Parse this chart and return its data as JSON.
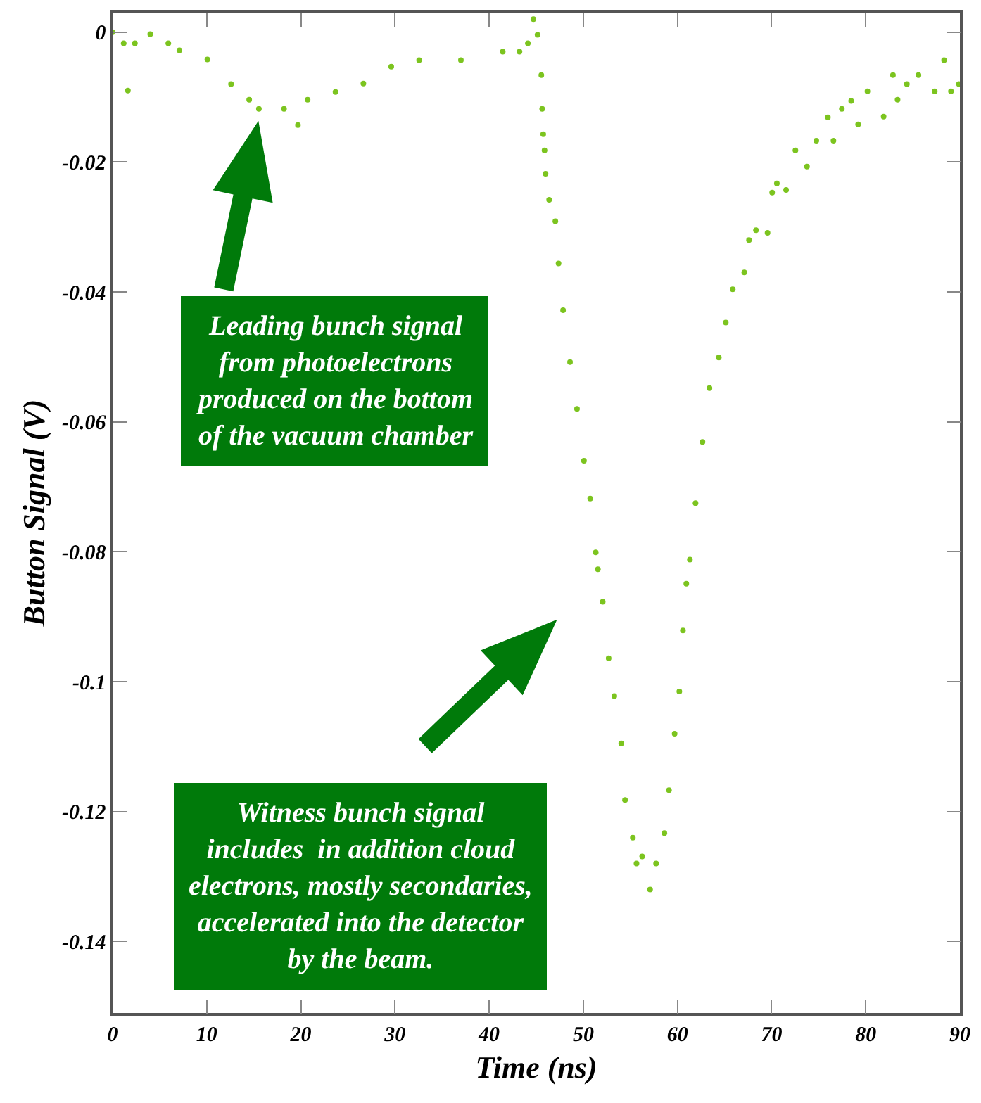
{
  "chart_data": {
    "type": "scatter",
    "xlabel": "Time (ns)",
    "ylabel": "Button Signal (V)",
    "xlim": [
      0,
      90
    ],
    "ylim": [
      -0.151,
      0.003
    ],
    "xticks": [
      0,
      10,
      20,
      30,
      40,
      50,
      60,
      70,
      80,
      90
    ],
    "yticks": [
      0,
      -0.02,
      -0.04,
      -0.06,
      -0.08,
      -0.1,
      -0.12,
      -0.14
    ],
    "legend": false,
    "marker": "circle",
    "x": [
      0.0,
      1.18,
      1.63,
      2.37,
      4.0,
      5.92,
      7.1,
      10.07,
      12.58,
      14.51,
      15.54,
      18.21,
      19.69,
      20.72,
      23.68,
      26.64,
      29.6,
      32.56,
      37.0,
      41.44,
      43.22,
      44.11,
      44.7,
      45.14,
      45.54,
      45.63,
      45.74,
      45.88,
      45.99,
      46.37,
      47.03,
      47.37,
      47.85,
      48.59,
      49.33,
      50.07,
      50.73,
      51.32,
      51.55,
      52.06,
      52.69,
      53.29,
      54.03,
      54.43,
      55.26,
      55.65,
      56.25,
      57.09,
      57.73,
      58.61,
      59.1,
      59.7,
      60.2,
      60.58,
      60.94,
      61.32,
      61.92,
      62.66,
      63.4,
      64.39,
      65.13,
      65.87,
      67.1,
      67.6,
      68.34,
      69.57,
      70.06,
      70.56,
      71.54,
      72.53,
      73.76,
      74.75,
      75.98,
      76.57,
      77.46,
      78.45,
      79.19,
      80.18,
      81.9,
      82.89,
      83.38,
      84.37,
      85.6,
      87.33,
      88.32,
      89.05,
      89.9
    ],
    "series": [
      {
        "color": "#7cc41f",
        "values": [
          0,
          -0.0017,
          -0.009,
          -0.0017,
          -0.0003,
          -0.0017,
          -0.0028,
          -0.0042,
          -0.008,
          -0.0104,
          -0.0118,
          -0.0118,
          -0.0143,
          -0.0104,
          -0.0092,
          -0.0079,
          -0.0053,
          -0.0043,
          -0.0043,
          -0.003,
          -0.003,
          -0.0017,
          0.002,
          -0.0004,
          -0.0066,
          -0.0118,
          -0.0157,
          -0.0182,
          -0.0218,
          -0.0258,
          -0.0291,
          -0.0356,
          -0.0428,
          -0.0508,
          -0.058,
          -0.066,
          -0.0718,
          -0.0801,
          -0.0827,
          -0.0877,
          -0.0964,
          -0.1022,
          -0.1095,
          -0.1182,
          -0.124,
          -0.128,
          -0.1269,
          -0.132,
          -0.128,
          -0.1233,
          -0.1167,
          -0.108,
          -0.1015,
          -0.0921,
          -0.0849,
          -0.0812,
          -0.0725,
          -0.0631,
          -0.0548,
          -0.0501,
          -0.0447,
          -0.0396,
          -0.037,
          -0.032,
          -0.0305,
          -0.0309,
          -0.0247,
          -0.0233,
          -0.0243,
          -0.0182,
          -0.0207,
          -0.0167,
          -0.0131,
          -0.0167,
          -0.0118,
          -0.0106,
          -0.0142,
          -0.0091,
          -0.013,
          -0.0066,
          -0.0104,
          -0.008,
          -0.0066,
          -0.0091,
          -0.0043,
          -0.0091,
          -0.008
        ]
      }
    ],
    "annotations": [
      "Leading bunch signal\nfrom photoelectrons\nproduced on the bottom\nof the vacuum chamber",
      "Witness bunch signal\nincludes  in addition cloud\nelectrons, mostly secondaries,\naccelerated into the detector\nby the beam."
    ]
  }
}
